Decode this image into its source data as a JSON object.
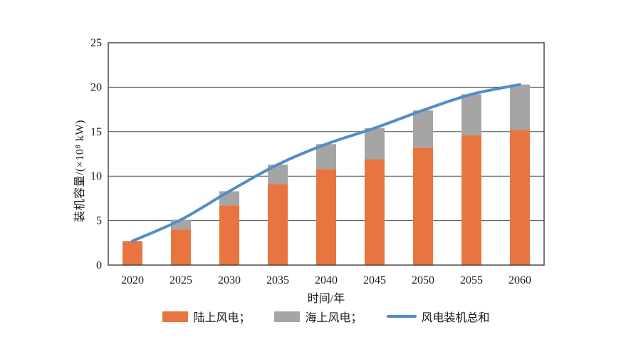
{
  "chart_data": {
    "type": "bar",
    "subtype": "stacked-bar-with-line",
    "title": "",
    "xlabel": "时间/年",
    "ylabel": "装机容量/(×10⁸ kW)",
    "categories": [
      "2020",
      "2025",
      "2030",
      "2035",
      "2040",
      "2045",
      "2050",
      "2055",
      "2060"
    ],
    "yticks": [
      0,
      5,
      10,
      15,
      20,
      25
    ],
    "ylim": [
      0,
      25
    ],
    "grid": "horizontal",
    "series": [
      {
        "name": "陆上风电",
        "type": "bar",
        "stack": true,
        "color": "#E8753F",
        "values": [
          2.7,
          4.0,
          6.7,
          9.1,
          10.8,
          11.9,
          13.2,
          14.6,
          15.2
        ]
      },
      {
        "name": "海上风电",
        "type": "bar",
        "stack": true,
        "color": "#A5A5A5",
        "values": [
          0,
          1.1,
          1.6,
          2.2,
          2.8,
          3.5,
          4.2,
          4.6,
          5.1
        ]
      },
      {
        "name": "风电装机总和",
        "type": "line",
        "color": "#548CC8",
        "values": [
          2.7,
          5.1,
          8.3,
          11.3,
          13.6,
          15.4,
          17.4,
          19.2,
          20.3
        ]
      }
    ],
    "colors": {
      "axis": "#3d3d3d",
      "grid": "#4d4d4d",
      "text": "#1a1a1a",
      "background": "#ffffff"
    },
    "legend": {
      "position": "bottom",
      "labels": [
        "陆上风电；",
        "海上风电；",
        "风电装机总和"
      ]
    }
  }
}
